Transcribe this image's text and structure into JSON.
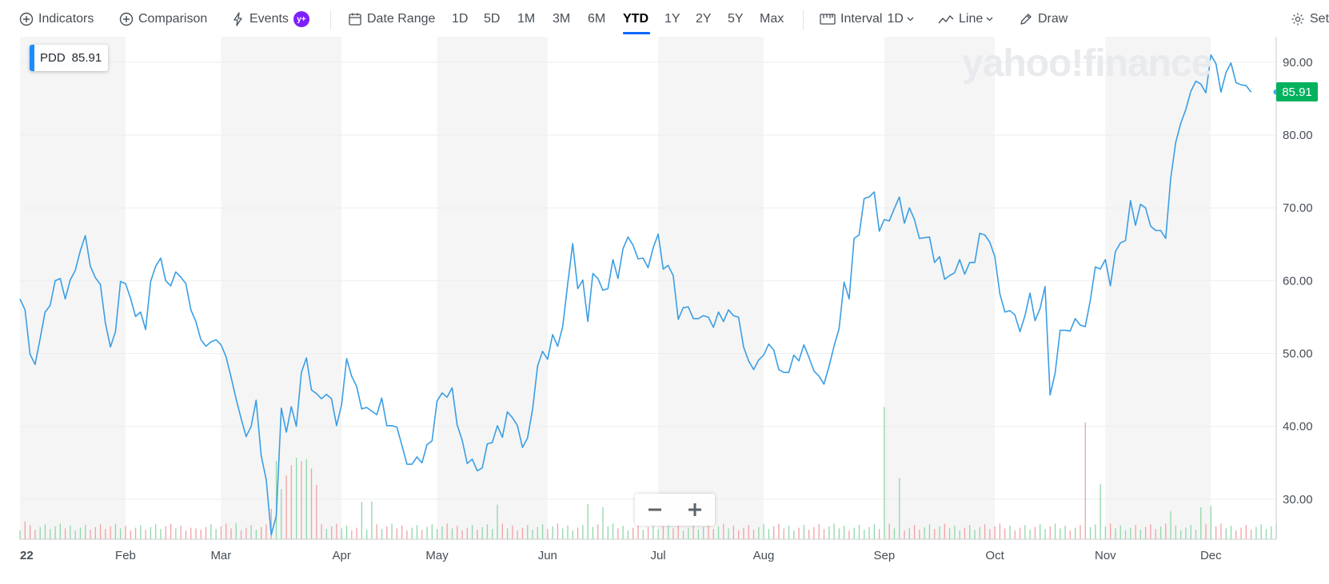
{
  "toolbar": {
    "indicators_label": "Indicators",
    "comparison_label": "Comparison",
    "events_label": "Events",
    "events_badge": "y+",
    "date_range_label": "Date Range",
    "ranges": [
      "1D",
      "5D",
      "1M",
      "3M",
      "6M",
      "YTD",
      "1Y",
      "2Y",
      "5Y",
      "Max"
    ],
    "active_range": "YTD",
    "interval_label": "Interval",
    "interval_value": "1D",
    "chart_type_label": "Line",
    "draw_label": "Draw",
    "settings_label": "Set"
  },
  "legend": {
    "symbol": "PDD",
    "value": "85.91"
  },
  "watermark": "yahoo!finance",
  "price_badge": "85.91",
  "colors": {
    "line": "#3a9ee4",
    "volume_up": "#8fd7a8",
    "volume_down": "#f4a0a3",
    "band": "#f5f5f5",
    "price_badge": "#00b15d",
    "active_tab": "#0f69ff"
  },
  "chart_data": {
    "type": "line",
    "symbol": "PDD",
    "last_price": 85.91,
    "y_ticks": [
      30,
      40,
      50,
      60,
      70,
      80,
      90
    ],
    "y_tick_labels": [
      "30.00",
      "40.00",
      "50.00",
      "60.00",
      "70.00",
      "80.00",
      "90.00"
    ],
    "ylim": [
      24.5,
      93.5
    ],
    "x_tick_labels": [
      "22",
      "Feb",
      "Mar",
      "Apr",
      "May",
      "Jun",
      "Jul",
      "Aug",
      "Sep",
      "Oct",
      "Nov",
      "Dec"
    ],
    "x_tick_positions": [
      0,
      21,
      40,
      64,
      83,
      105,
      127,
      148,
      172,
      194,
      216,
      237
    ],
    "trading_days": 251,
    "prices": [
      57.5,
      56.0,
      49.9,
      48.5,
      52.0,
      55.7,
      56.6,
      60.0,
      60.3,
      57.5,
      60.1,
      61.4,
      64.1,
      66.2,
      62.0,
      60.4,
      59.5,
      54.2,
      50.9,
      53.0,
      59.9,
      59.6,
      57.6,
      55.1,
      55.7,
      53.3,
      59.9,
      62.0,
      63.1,
      60.0,
      59.3,
      61.2,
      60.5,
      59.6,
      56.0,
      54.4,
      51.9,
      51.0,
      51.6,
      51.9,
      51.2,
      49.6,
      46.8,
      43.8,
      41.1,
      38.6,
      40.0,
      43.6,
      36.0,
      32.7,
      25.1,
      27.7,
      42.5,
      39.2,
      42.7,
      40.0,
      47.4,
      49.4,
      45.0,
      44.5,
      43.8,
      44.4,
      43.8,
      40.1,
      43.0,
      49.3,
      46.9,
      45.5,
      42.4,
      42.6,
      42.1,
      41.6,
      43.9,
      40.1,
      40.1,
      39.9,
      37.4,
      34.8,
      34.8,
      35.8,
      35.0,
      37.5,
      38.0,
      43.5,
      44.6,
      44.0,
      45.3,
      40.2,
      38.1,
      34.9,
      35.5,
      33.9,
      34.3,
      37.6,
      37.8,
      40.1,
      38.5,
      42.0,
      41.2,
      40.1,
      37.1,
      38.4,
      42.3,
      48.3,
      50.3,
      49.2,
      52.6,
      51.0,
      53.7,
      59.6,
      65.1,
      58.9,
      60.1,
      54.4,
      61.0,
      60.3,
      58.7,
      58.9,
      62.9,
      60.3,
      64.4,
      66.0,
      64.9,
      63.0,
      63.1,
      61.8,
      64.5,
      66.4,
      61.6,
      62.1,
      60.7,
      54.7,
      56.3,
      56.4,
      54.8,
      54.8,
      55.2,
      55.0,
      53.6,
      55.7,
      54.4,
      56.0,
      55.2,
      55.0,
      50.9,
      49.0,
      47.8,
      49.1,
      49.8,
      51.3,
      50.5,
      47.8,
      47.4,
      47.4,
      49.8,
      49.0,
      51.2,
      49.5,
      47.6,
      46.9,
      45.8,
      48.2,
      51.0,
      53.4,
      59.8,
      57.5,
      65.8,
      66.3,
      71.3,
      71.5,
      72.2,
      66.8,
      68.4,
      68.2,
      69.9,
      71.5,
      67.9,
      70.0,
      68.4,
      65.8,
      65.9,
      66.0,
      62.5,
      63.3,
      60.2,
      60.7,
      61.1,
      62.9,
      60.9,
      62.5,
      62.5,
      66.5,
      66.3,
      65.3,
      63.3,
      58.2,
      55.7,
      55.9,
      55.3,
      53.0,
      55.2,
      58.3,
      54.5,
      56.2,
      59.2,
      44.3,
      47.3,
      53.2,
      53.2,
      53.1,
      54.8,
      53.9,
      53.7,
      57.3,
      61.9,
      61.6,
      62.9,
      59.3,
      64.0,
      65.2,
      65.5,
      71.0,
      67.6,
      70.5,
      70.0,
      67.5,
      66.9,
      66.9,
      65.8,
      74.0,
      79.0,
      81.6,
      83.5,
      86.0,
      87.4,
      87.0,
      85.8,
      91.0,
      89.8,
      85.9,
      88.6,
      89.9,
      87.2,
      86.9,
      86.8,
      85.9
    ],
    "volume_spikes": [
      [
        1,
        2.6
      ],
      [
        35,
        1.6
      ],
      [
        43,
        2.4
      ],
      [
        50,
        4.5
      ],
      [
        51,
        11.5
      ],
      [
        52,
        7.4
      ],
      [
        53,
        9.4
      ],
      [
        54,
        10.9
      ],
      [
        55,
        12.0
      ],
      [
        56,
        11.5
      ],
      [
        57,
        11.8
      ],
      [
        58,
        10.4
      ],
      [
        59,
        8.0
      ],
      [
        68,
        5.5
      ],
      [
        70,
        5.6
      ],
      [
        95,
        5.1
      ],
      [
        113,
        5.2
      ],
      [
        116,
        4.7
      ],
      [
        172,
        19.5
      ],
      [
        175,
        9.0
      ],
      [
        212,
        17.2
      ],
      [
        215,
        8.1
      ],
      [
        237,
        4.9
      ],
      [
        235,
        4.7
      ],
      [
        229,
        4.1
      ]
    ],
    "volume_down_days": [
      1,
      35,
      48,
      50,
      53,
      54,
      56,
      58,
      59,
      212
    ]
  }
}
